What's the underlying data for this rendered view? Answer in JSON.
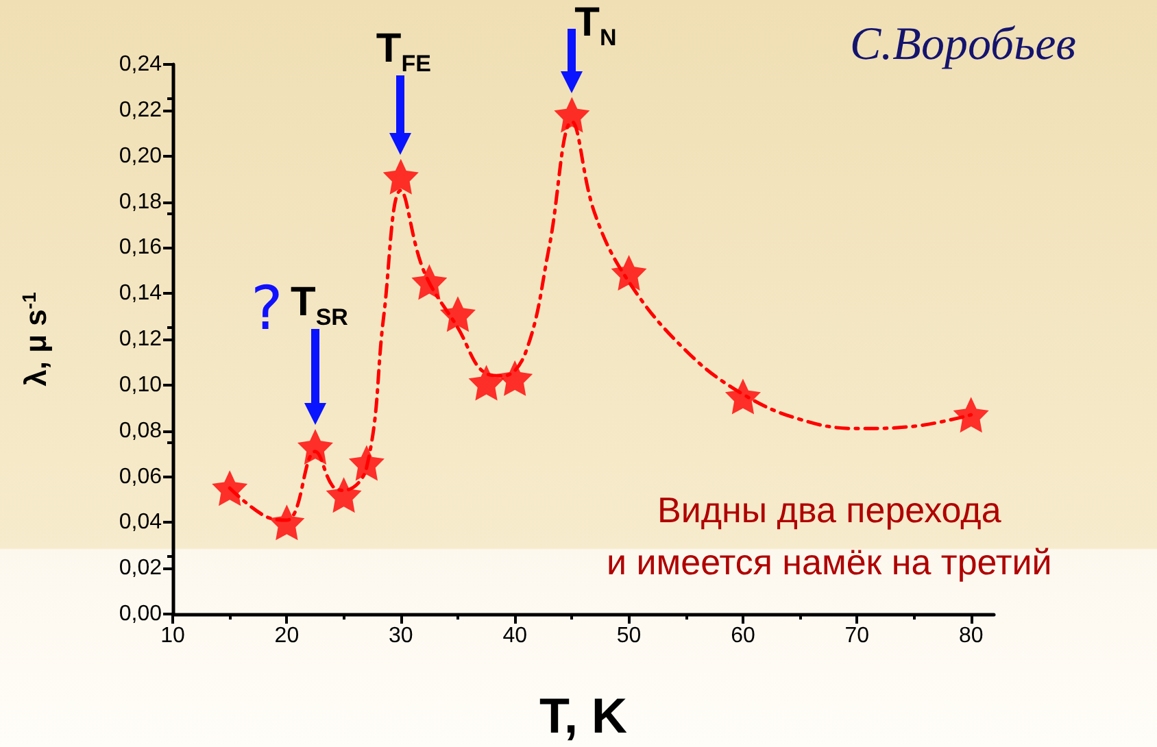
{
  "chart_data": {
    "type": "scatter",
    "xlabel": "T, K",
    "ylabel": "λ, μ s$^{-1}$",
    "xlim": [
      10,
      82
    ],
    "xticks": [
      10,
      20,
      30,
      40,
      50,
      60,
      70,
      80
    ],
    "ylim": [
      0,
      0.24
    ],
    "yticks": [
      {
        "value": 0,
        "label": "0,00"
      },
      {
        "value": 0.02,
        "label": "0,02"
      },
      {
        "value": 0.04,
        "label": "0,04"
      },
      {
        "value": 0.06,
        "label": "0,06"
      },
      {
        "value": 0.08,
        "label": "0,08"
      },
      {
        "value": 0.1,
        "label": "0,10"
      },
      {
        "value": 0.12,
        "label": "0,12"
      },
      {
        "value": 0.14,
        "label": "0,14"
      },
      {
        "value": 0.16,
        "label": "0,16"
      },
      {
        "value": 0.18,
        "label": "0,18"
      },
      {
        "value": 0.2,
        "label": "0,20"
      },
      {
        "value": 0.22,
        "label": "0,22"
      },
      {
        "value": 0.24,
        "label": "0,24"
      }
    ],
    "grid": false,
    "series": [
      {
        "marker": "star",
        "color": "#ff0000",
        "x": [
          15,
          20,
          22.5,
          25,
          27,
          30,
          32.5,
          35,
          37.5,
          40,
          45,
          50,
          60,
          80
        ],
        "values": [
          0.055,
          0.04,
          0.073,
          0.052,
          0.066,
          0.191,
          0.145,
          0.131,
          0.101,
          0.103,
          0.218,
          0.149,
          0.095,
          0.087
        ]
      },
      {
        "type": "line",
        "marker": "none",
        "line_style": "dashed",
        "color": "#ff0000",
        "x": [
          15,
          18,
          20,
          22.5,
          24,
          25,
          27,
          28.5,
          30,
          32,
          35,
          37.5,
          39,
          41,
          43,
          45,
          47,
          50,
          55,
          60,
          65,
          70,
          75,
          80
        ],
        "values": [
          0.055,
          0.043,
          0.041,
          0.071,
          0.056,
          0.054,
          0.064,
          0.13,
          0.185,
          0.15,
          0.125,
          0.105,
          0.104,
          0.115,
          0.16,
          0.215,
          0.175,
          0.145,
          0.115,
          0.096,
          0.085,
          0.081,
          0.082,
          0.087
        ]
      }
    ],
    "annotations": [
      {
        "text": "T$_{FE}$",
        "x": 30,
        "y": 0.191
      },
      {
        "text": "T$_{N}$",
        "x": 45,
        "y": 0.218
      },
      {
        "text": "T$_{SR}$",
        "x": 22.5,
        "y": 0.073
      },
      "?",
      "С.Воробьев",
      "Видны два перехода",
      "и имеется намёк на третий"
    ]
  }
}
